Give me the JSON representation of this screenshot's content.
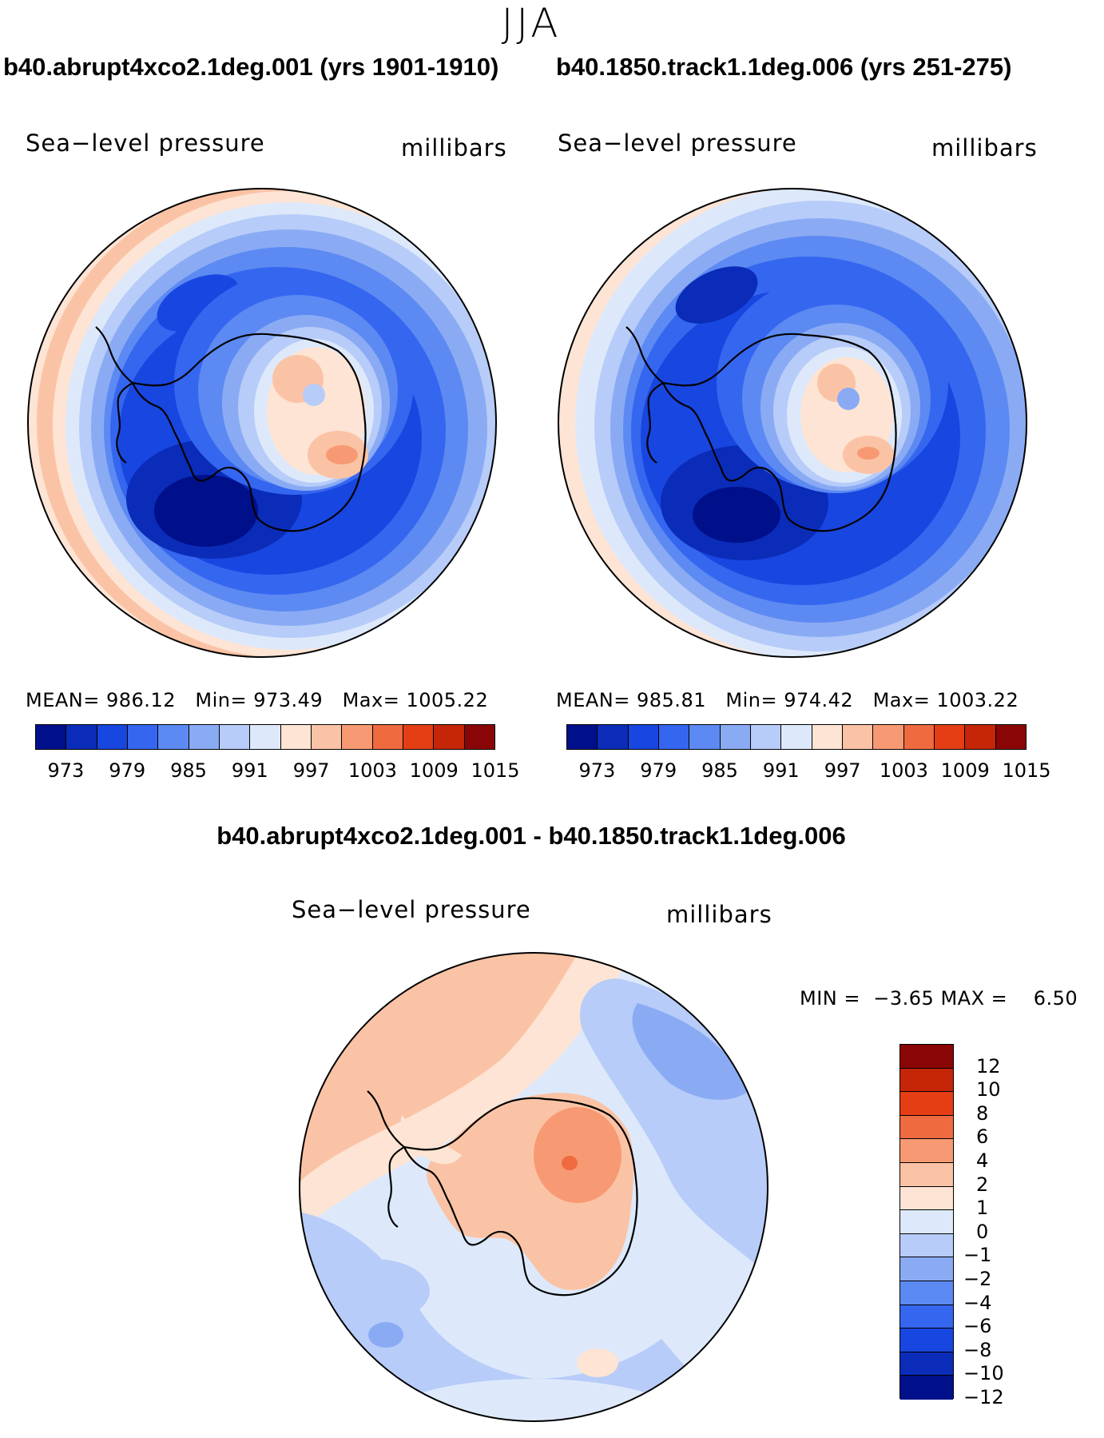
{
  "season": "JJA",
  "panel_left": {
    "title": "b40.abrupt4xco2.1deg.001 (yrs 1901-1910)",
    "variable": "Sea−level pressure",
    "units": "millibars",
    "mean_label": "MEAN=",
    "mean": "986.12",
    "min_label": "Min=",
    "min": "973.49",
    "max_label": "Max=",
    "max": "1005.22"
  },
  "panel_right": {
    "title": "b40.1850.track1.1deg.006 (yrs 251-275)",
    "variable": "Sea−level pressure",
    "units": "millibars",
    "mean_label": "MEAN=",
    "mean": "985.81",
    "min_label": "Min=",
    "min": "974.42",
    "max_label": "Max=",
    "max": "1003.22"
  },
  "panel_diff": {
    "title": "b40.abrupt4xco2.1deg.001 - b40.1850.track1.1deg.006",
    "variable": "Sea−level pressure",
    "units": "millibars",
    "min_label": "MIN =",
    "min": "−3.65",
    "max_label": "MAX =",
    "max": "6.50"
  },
  "colorbar_abs": {
    "tick_labels": [
      "973",
      "979",
      "985",
      "991",
      "997",
      "1003",
      "1009",
      "1015"
    ],
    "colors": [
      "#00108a",
      "#0a2cb8",
      "#1846e0",
      "#3566f0",
      "#5c8af2",
      "#8aabf4",
      "#b7ccf8",
      "#dde9fb",
      "#fde4d4",
      "#fbc3a5",
      "#f79a73",
      "#f06a40",
      "#e53e14",
      "#c52607",
      "#8a0606"
    ]
  },
  "colorbar_diff": {
    "tick_labels": [
      "12",
      "10",
      "8",
      "6",
      "4",
      "2",
      "1",
      "0",
      "−1",
      "−2",
      "−4",
      "−6",
      "−8",
      "−10",
      "−12"
    ],
    "colors": [
      "#8a0606",
      "#c52607",
      "#e53e14",
      "#f06a40",
      "#f79a73",
      "#fbc3a5",
      "#fde4d4",
      "#dde9fb",
      "#b7ccf8",
      "#8aabf4",
      "#5c8af2",
      "#3566f0",
      "#1846e0",
      "#0a2cb8",
      "#00108a"
    ]
  }
}
